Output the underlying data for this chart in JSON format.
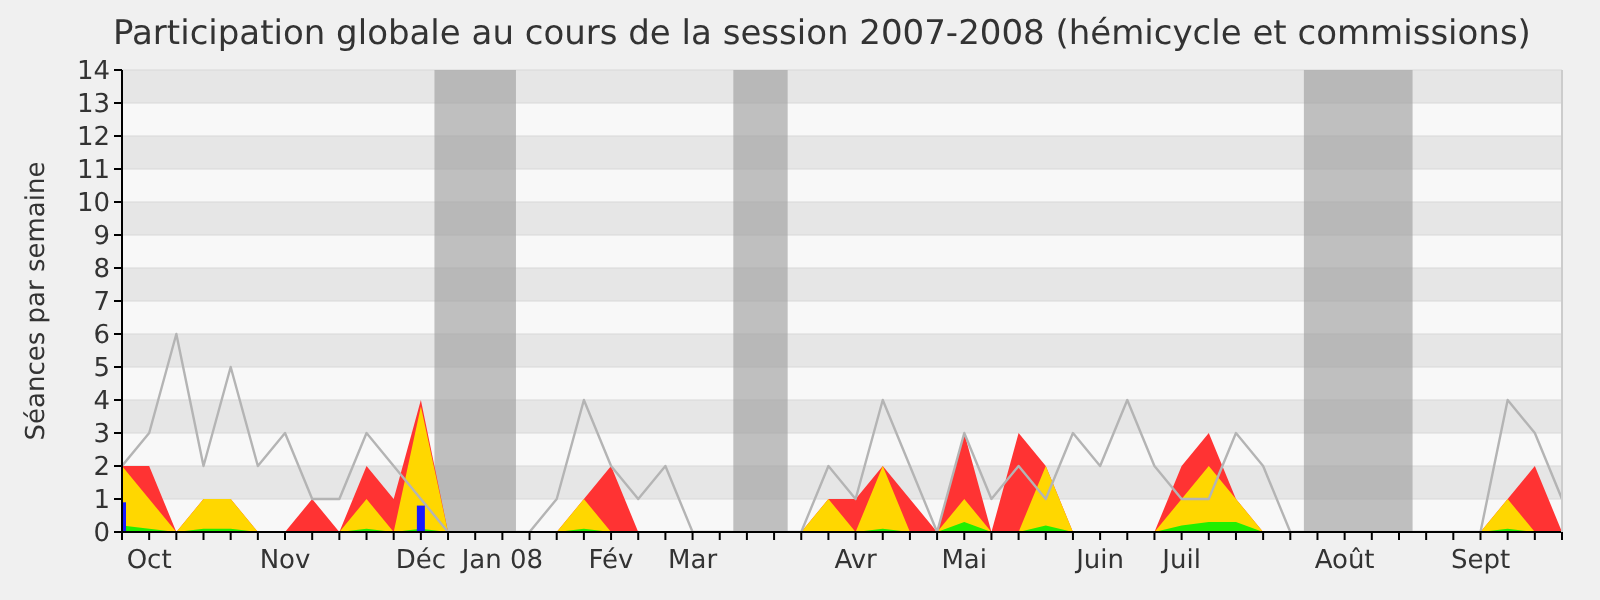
{
  "chart_data": {
    "type": "area",
    "title": "Participation globale au cours de la session 2007-2008 (hémicycle et commissions)",
    "ylabel": "Séances par semaine",
    "categories": [
      null,
      "Oct",
      null,
      null,
      null,
      null,
      "Nov",
      null,
      null,
      null,
      null,
      "Déc",
      null,
      null,
      "Jan 08",
      null,
      null,
      null,
      "Fév",
      null,
      null,
      "Mar",
      null,
      null,
      null,
      null,
      null,
      "Avr",
      null,
      null,
      null,
      "Mai",
      null,
      null,
      null,
      null,
      "Juin",
      null,
      null,
      "Juil",
      null,
      null,
      null,
      null,
      null,
      "Août",
      null,
      null,
      null,
      null,
      "Sept",
      null,
      null,
      null
    ],
    "series": [
      {
        "color": "#ff3333",
        "values": [
          2,
          2,
          0,
          1,
          1,
          0,
          0,
          1,
          0,
          2,
          1,
          4,
          0,
          0,
          0,
          0,
          0,
          1,
          2,
          0,
          0,
          0,
          0,
          0,
          0,
          0,
          1,
          1,
          2,
          1,
          0,
          3,
          0,
          3,
          2,
          0,
          0,
          0,
          0,
          2,
          3,
          1,
          0,
          0,
          0,
          0,
          0,
          0,
          0,
          0,
          0,
          1,
          2,
          0
        ]
      },
      {
        "color": "#ffd700",
        "values": [
          2,
          1,
          0,
          1,
          1,
          0,
          0,
          0,
          0,
          1,
          0,
          3.8,
          0,
          0,
          0,
          0,
          0,
          1,
          0,
          0,
          0,
          0,
          0,
          0,
          0,
          0,
          1,
          0,
          2,
          0,
          0,
          1,
          0,
          0,
          2,
          0,
          0,
          0,
          0,
          1,
          2,
          1,
          0,
          0,
          0,
          0,
          0,
          0,
          0,
          0,
          0,
          1,
          0,
          0
        ]
      },
      {
        "color": "#22ee00",
        "values": [
          0.2,
          0.1,
          0,
          0.1,
          0.1,
          0,
          0,
          0,
          0,
          0.1,
          0,
          0.1,
          0,
          0,
          0,
          0,
          0,
          0.1,
          0,
          0,
          0,
          0,
          0,
          0,
          0,
          0,
          0,
          0,
          0.1,
          0,
          0,
          0.3,
          0,
          0,
          0.2,
          0,
          0,
          0,
          0,
          0.2,
          0.3,
          0.3,
          0,
          0,
          0,
          0,
          0,
          0,
          0,
          0,
          0,
          0.1,
          0,
          0
        ]
      },
      {
        "type": "line",
        "color": "#b4b4b4",
        "values": [
          2,
          3,
          6,
          2,
          5,
          2,
          3,
          1,
          1,
          3,
          2,
          1,
          0,
          0,
          0,
          0,
          1,
          4,
          2,
          1,
          2,
          0,
          0,
          0,
          0,
          0,
          2,
          1,
          4,
          2,
          0,
          3,
          1,
          2,
          1,
          3,
          2,
          4,
          2,
          1,
          1,
          3,
          2,
          0,
          0,
          0,
          0,
          0,
          0,
          0,
          0,
          4,
          3,
          1
        ]
      },
      {
        "type": "bar",
        "color": "#1a1aff",
        "values": [
          0.9,
          null,
          null,
          null,
          null,
          null,
          null,
          null,
          null,
          null,
          null,
          0.8,
          null,
          null,
          null,
          null,
          null,
          null,
          null,
          null,
          null,
          null,
          null,
          null,
          null,
          null,
          null,
          null,
          null,
          null,
          null,
          null,
          null,
          null,
          null,
          null,
          null,
          null,
          null,
          null,
          null,
          null,
          null,
          null,
          null,
          null,
          null,
          null,
          null,
          null,
          null,
          null,
          null,
          null
        ]
      }
    ],
    "ylim": [
      0,
      14
    ],
    "yticks": [
      0,
      1,
      2,
      3,
      4,
      5,
      6,
      7,
      8,
      9,
      10,
      11,
      12,
      13,
      14
    ],
    "grid": "y"
  }
}
